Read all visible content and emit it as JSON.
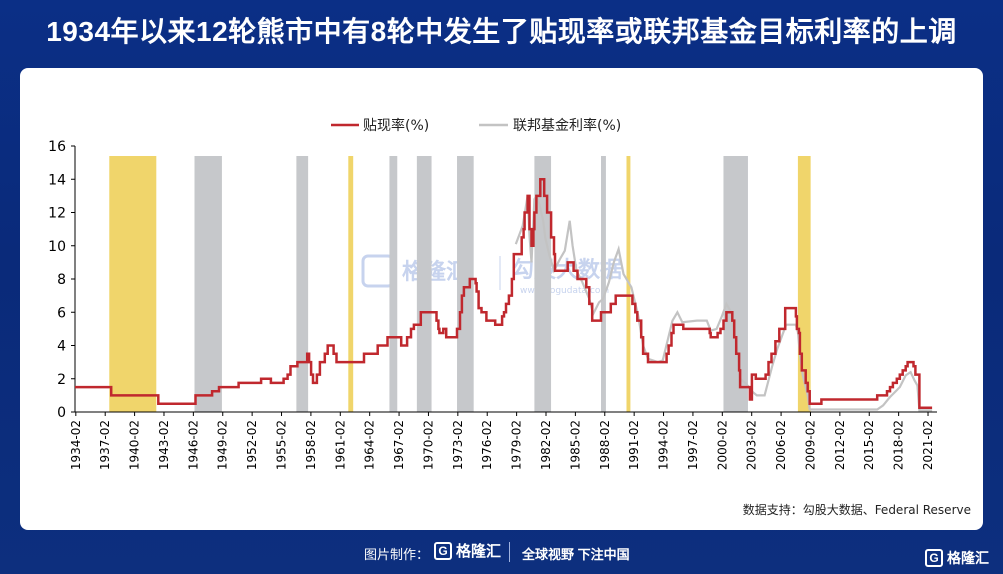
{
  "header": {
    "title": "1934年以来12轮熊市中有8轮中发生了贴现率或联邦基金目标利率的上调"
  },
  "footer": {
    "made_by": "图片制作：",
    "brand": "格隆汇",
    "slogan": "全球视野 下注中国",
    "corner_brand": "格隆汇"
  },
  "watermark": {
    "text1": "格隆汇",
    "text2": "勾股大数据",
    "url": "www.gogudata.com"
  },
  "source": "数据支持：勾股大数据、Federal Reserve",
  "colors": {
    "discount": "#c0282e",
    "fedfunds": "#c3c3c3",
    "bear_gray": "#c6c8cb",
    "bear_yellow": "#f0d56b"
  },
  "chart_data": {
    "type": "line",
    "x_ticks": [
      "1934-02",
      "1937-02",
      "1940-02",
      "1943-02",
      "1946-02",
      "1949-02",
      "1952-02",
      "1955-02",
      "1958-02",
      "1961-02",
      "1964-02",
      "1967-02",
      "1970-02",
      "1973-02",
      "1976-02",
      "1979-02",
      "1982-02",
      "1985-02",
      "1988-02",
      "1991-02",
      "1994-02",
      "1997-02",
      "2000-02",
      "2003-02",
      "2006-02",
      "2009-02",
      "2012-02",
      "2015-02",
      "2018-02",
      "2021-02"
    ],
    "y_ticks": [
      0,
      2,
      4,
      6,
      8,
      10,
      12,
      14,
      16
    ],
    "ylim": [
      0,
      16
    ],
    "xlim": [
      1934.0,
      2022.0
    ],
    "legend": {
      "position": "top-center",
      "items": [
        "贴现率(%)",
        "联邦基金利率(%)"
      ]
    },
    "series": [
      {
        "name": "贴现率(%)",
        "color": "#c0282e",
        "step": true,
        "points": [
          [
            1934.0,
            1.5
          ],
          [
            1937.5,
            1.5
          ],
          [
            1937.7,
            1.0
          ],
          [
            1942.3,
            1.0
          ],
          [
            1942.5,
            0.5
          ],
          [
            1945.8,
            0.5
          ],
          [
            1946.3,
            1.0
          ],
          [
            1948.0,
            1.25
          ],
          [
            1948.7,
            1.5
          ],
          [
            1950.7,
            1.75
          ],
          [
            1953.0,
            2.0
          ],
          [
            1954.0,
            1.75
          ],
          [
            1955.3,
            2.0
          ],
          [
            1955.7,
            2.25
          ],
          [
            1956.0,
            2.75
          ],
          [
            1956.7,
            3.0
          ],
          [
            1957.7,
            3.5
          ],
          [
            1957.9,
            3.0
          ],
          [
            1958.1,
            2.25
          ],
          [
            1958.3,
            1.75
          ],
          [
            1958.7,
            2.25
          ],
          [
            1959.0,
            3.0
          ],
          [
            1959.5,
            3.5
          ],
          [
            1959.8,
            4.0
          ],
          [
            1960.4,
            3.5
          ],
          [
            1960.7,
            3.0
          ],
          [
            1963.5,
            3.5
          ],
          [
            1964.9,
            4.0
          ],
          [
            1965.9,
            4.5
          ],
          [
            1967.3,
            4.0
          ],
          [
            1967.9,
            4.5
          ],
          [
            1968.3,
            5.0
          ],
          [
            1968.6,
            5.25
          ],
          [
            1969.3,
            6.0
          ],
          [
            1970.9,
            5.5
          ],
          [
            1971.1,
            5.0
          ],
          [
            1971.2,
            4.75
          ],
          [
            1971.6,
            5.0
          ],
          [
            1971.9,
            4.5
          ],
          [
            1973.0,
            5.0
          ],
          [
            1973.3,
            6.0
          ],
          [
            1973.5,
            7.0
          ],
          [
            1973.7,
            7.5
          ],
          [
            1974.3,
            8.0
          ],
          [
            1974.9,
            7.75
          ],
          [
            1975.0,
            7.25
          ],
          [
            1975.2,
            6.25
          ],
          [
            1975.5,
            6.0
          ],
          [
            1976.0,
            5.5
          ],
          [
            1976.9,
            5.25
          ],
          [
            1977.6,
            5.75
          ],
          [
            1977.8,
            6.0
          ],
          [
            1978.0,
            6.5
          ],
          [
            1978.3,
            7.0
          ],
          [
            1978.6,
            8.0
          ],
          [
            1978.8,
            9.5
          ],
          [
            1979.6,
            10.5
          ],
          [
            1979.8,
            11.0
          ],
          [
            1979.9,
            12.0
          ],
          [
            1980.2,
            13.0
          ],
          [
            1980.4,
            11.0
          ],
          [
            1980.6,
            10.0
          ],
          [
            1980.8,
            11.0
          ],
          [
            1980.9,
            12.0
          ],
          [
            1981.1,
            13.0
          ],
          [
            1981.5,
            14.0
          ],
          [
            1981.9,
            13.0
          ],
          [
            1982.2,
            12.0
          ],
          [
            1982.6,
            10.5
          ],
          [
            1982.9,
            9.5
          ],
          [
            1983.0,
            8.5
          ],
          [
            1984.3,
            9.0
          ],
          [
            1984.9,
            8.5
          ],
          [
            1985.3,
            8.0
          ],
          [
            1986.2,
            7.5
          ],
          [
            1986.5,
            6.5
          ],
          [
            1986.8,
            5.5
          ],
          [
            1987.7,
            6.0
          ],
          [
            1988.7,
            6.5
          ],
          [
            1989.2,
            7.0
          ],
          [
            1990.9,
            6.5
          ],
          [
            1991.2,
            6.0
          ],
          [
            1991.4,
            5.5
          ],
          [
            1991.8,
            4.5
          ],
          [
            1992.0,
            3.5
          ],
          [
            1992.5,
            3.0
          ],
          [
            1994.4,
            3.5
          ],
          [
            1994.6,
            4.0
          ],
          [
            1994.9,
            4.75
          ],
          [
            1995.1,
            5.25
          ],
          [
            1996.1,
            5.0
          ],
          [
            1998.8,
            4.75
          ],
          [
            1998.9,
            4.5
          ],
          [
            1999.6,
            4.75
          ],
          [
            1999.9,
            5.0
          ],
          [
            2000.2,
            5.5
          ],
          [
            2000.5,
            6.0
          ],
          [
            2001.1,
            5.5
          ],
          [
            2001.3,
            4.5
          ],
          [
            2001.5,
            3.5
          ],
          [
            2001.8,
            2.5
          ],
          [
            2001.9,
            1.5
          ],
          [
            2002.9,
            0.75
          ],
          [
            2003.1,
            2.25
          ],
          [
            2003.5,
            2.0
          ],
          [
            2004.5,
            2.25
          ],
          [
            2004.8,
            3.0
          ],
          [
            2005.1,
            3.5
          ],
          [
            2005.5,
            4.25
          ],
          [
            2005.9,
            5.0
          ],
          [
            2006.5,
            6.25
          ],
          [
            2007.6,
            5.75
          ],
          [
            2007.7,
            5.0
          ],
          [
            2007.9,
            4.75
          ],
          [
            2008.0,
            3.5
          ],
          [
            2008.2,
            2.5
          ],
          [
            2008.6,
            1.75
          ],
          [
            2008.8,
            1.25
          ],
          [
            2009.0,
            0.5
          ],
          [
            2010.2,
            0.75
          ],
          [
            2015.9,
            1.0
          ],
          [
            2016.9,
            1.25
          ],
          [
            2017.2,
            1.5
          ],
          [
            2017.5,
            1.75
          ],
          [
            2017.9,
            2.0
          ],
          [
            2018.2,
            2.25
          ],
          [
            2018.5,
            2.5
          ],
          [
            2018.8,
            2.75
          ],
          [
            2019.0,
            3.0
          ],
          [
            2019.6,
            2.75
          ],
          [
            2019.8,
            2.25
          ],
          [
            2020.2,
            0.25
          ],
          [
            2021.5,
            0.25
          ]
        ]
      },
      {
        "name": "联邦基金利率(%)",
        "color": "#c3c3c3",
        "step": false,
        "points": [
          [
            1979.0,
            10.1
          ],
          [
            1979.7,
            11.2
          ],
          [
            1980.2,
            13.0
          ],
          [
            1980.4,
            10.6
          ],
          [
            1980.6,
            9.0
          ],
          [
            1980.9,
            12.8
          ],
          [
            1981.1,
            13.0
          ],
          [
            1981.4,
            12.5
          ],
          [
            1981.8,
            11.5
          ],
          [
            1982.0,
            10.5
          ],
          [
            1982.4,
            9.5
          ],
          [
            1982.9,
            8.5
          ],
          [
            1983.5,
            9.2
          ],
          [
            1984.0,
            9.7
          ],
          [
            1984.5,
            11.5
          ],
          [
            1984.8,
            10.0
          ],
          [
            1985.2,
            8.5
          ],
          [
            1985.8,
            7.8
          ],
          [
            1986.5,
            6.8
          ],
          [
            1986.9,
            5.9
          ],
          [
            1987.5,
            6.6
          ],
          [
            1987.9,
            6.8
          ],
          [
            1988.5,
            7.8
          ],
          [
            1989.0,
            9.0
          ],
          [
            1989.5,
            9.8
          ],
          [
            1990.0,
            8.3
          ],
          [
            1990.8,
            7.5
          ],
          [
            1991.5,
            5.8
          ],
          [
            1992.0,
            4.0
          ],
          [
            1992.5,
            3.2
          ],
          [
            1993.5,
            3.0
          ],
          [
            1994.0,
            3.1
          ],
          [
            1994.5,
            4.3
          ],
          [
            1995.0,
            5.5
          ],
          [
            1995.5,
            6.0
          ],
          [
            1996.0,
            5.4
          ],
          [
            1997.5,
            5.5
          ],
          [
            1998.5,
            5.5
          ],
          [
            1998.9,
            4.9
          ],
          [
            1999.5,
            5.0
          ],
          [
            2000.0,
            5.7
          ],
          [
            2000.5,
            6.5
          ],
          [
            2001.0,
            6.0
          ],
          [
            2001.3,
            4.8
          ],
          [
            2001.6,
            3.8
          ],
          [
            2001.9,
            2.0
          ],
          [
            2002.5,
            1.7
          ],
          [
            2003.2,
            1.2
          ],
          [
            2003.6,
            1.0
          ],
          [
            2004.4,
            1.0
          ],
          [
            2004.8,
            1.9
          ],
          [
            2005.2,
            2.8
          ],
          [
            2005.7,
            3.8
          ],
          [
            2006.2,
            4.6
          ],
          [
            2006.6,
            5.25
          ],
          [
            2007.6,
            5.25
          ],
          [
            2007.8,
            4.8
          ],
          [
            2008.0,
            3.5
          ],
          [
            2008.3,
            2.2
          ],
          [
            2008.8,
            1.0
          ],
          [
            2009.0,
            0.15
          ],
          [
            2015.9,
            0.15
          ],
          [
            2016.5,
            0.4
          ],
          [
            2017.2,
            0.9
          ],
          [
            2017.7,
            1.2
          ],
          [
            2018.2,
            1.5
          ],
          [
            2018.8,
            2.2
          ],
          [
            2019.3,
            2.4
          ],
          [
            2019.7,
            1.9
          ],
          [
            2020.0,
            1.6
          ],
          [
            2020.2,
            0.1
          ],
          [
            2021.5,
            0.1
          ]
        ]
      }
    ],
    "bear_markets": [
      {
        "start": 1937.5,
        "end": 1942.3,
        "color": "yellow"
      },
      {
        "start": 1946.2,
        "end": 1949.0,
        "color": "gray"
      },
      {
        "start": 1956.6,
        "end": 1957.8,
        "color": "gray"
      },
      {
        "start": 1961.9,
        "end": 1962.4,
        "color": "yellow"
      },
      {
        "start": 1966.1,
        "end": 1966.9,
        "color": "gray"
      },
      {
        "start": 1968.9,
        "end": 1970.4,
        "color": "gray"
      },
      {
        "start": 1973.0,
        "end": 1974.7,
        "color": "gray"
      },
      {
        "start": 1980.9,
        "end": 1982.6,
        "color": "gray"
      },
      {
        "start": 1987.7,
        "end": 1988.2,
        "color": "gray"
      },
      {
        "start": 1990.3,
        "end": 1990.7,
        "color": "yellow"
      },
      {
        "start": 2000.2,
        "end": 2002.7,
        "color": "gray"
      },
      {
        "start": 2007.8,
        "end": 2009.1,
        "color": "yellow"
      }
    ]
  }
}
